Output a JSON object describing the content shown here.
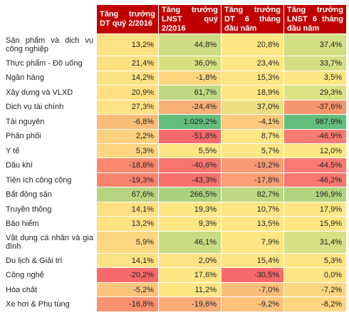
{
  "chart_data": {
    "type": "heatmap",
    "columns": [
      "Tăng trưởng DT quý 2/2016",
      "Tăng trưởng LNST quý 2/2016",
      "Tăng trưởng DT 6 tháng đầu năm",
      "Tăng trưởng LNST 6 tháng đầu năm"
    ],
    "rows": [
      {
        "sector": "Sản phẩm và dịch vụ công nghiệp",
        "values": [
          "13,2%",
          "44,8%",
          "20,8%",
          "37,4%"
        ]
      },
      {
        "sector": "Thực phẩm - Đồ uống",
        "values": [
          "21,4%",
          "36,0%",
          "23,4%",
          "33,7%"
        ]
      },
      {
        "sector": "Ngân hàng",
        "values": [
          "14,2%",
          "-1,8%",
          "15,3%",
          "3,5%"
        ]
      },
      {
        "sector": "Xây dựng và VLXD",
        "values": [
          "20,9%",
          "61,7%",
          "18,9%",
          "29,3%"
        ]
      },
      {
        "sector": "Dịch vụ tài chính",
        "values": [
          "27,3%",
          "-24,4%",
          "37,0%",
          "-37,6%"
        ]
      },
      {
        "sector": "Tài nguyên",
        "values": [
          "-6,8%",
          "1.029,2%",
          "-4,1%",
          "987,9%"
        ]
      },
      {
        "sector": "Phân phối",
        "values": [
          "2,2%",
          "-51,8%",
          "8,7%",
          "-46,9%"
        ]
      },
      {
        "sector": "Y tế",
        "values": [
          "5,3%",
          "5,5%",
          "5,7%",
          "12,0%"
        ]
      },
      {
        "sector": "Dầu khí",
        "values": [
          "-18,8%",
          "-40,6%",
          "-19,2%",
          "-44,5%"
        ]
      },
      {
        "sector": "Tiện ích công cộng",
        "values": [
          "-19,3%",
          "-43,3%",
          "-17,8%",
          "-46,2%"
        ]
      },
      {
        "sector": "Bất động sản",
        "values": [
          "67,6%",
          "266,5%",
          "82,7%",
          "196,9%"
        ]
      },
      {
        "sector": "Truyền thông",
        "values": [
          "14,1%",
          "19,3%",
          "10,7%",
          "17,9%"
        ]
      },
      {
        "sector": "Bảo hiểm",
        "values": [
          "13,2%",
          "9,3%",
          "13,5%",
          "15,9%"
        ]
      },
      {
        "sector": "Vật dụng cá nhân và gia đình",
        "values": [
          "5,9%",
          "46,1%",
          "7,9%",
          "31,4%"
        ]
      },
      {
        "sector": "Du lịch & Giải trí",
        "values": [
          "14,1%",
          "2,0%",
          "15,4%",
          "5,3%"
        ]
      },
      {
        "sector": "Công nghệ",
        "values": [
          "-20,2%",
          "17,6%",
          "-30,5%",
          "0,0%"
        ]
      },
      {
        "sector": "Hóa chất",
        "values": [
          "-5,2%",
          "11,2%",
          "-7,0%",
          "-7,2%"
        ]
      },
      {
        "sector": "Xe hơi & Phụ tùng",
        "values": [
          "-16,8%",
          "-19,6%",
          "-9,2%",
          "-8,2%"
        ]
      }
    ],
    "cell_colors": [
      [
        "#fde283",
        "#cbdc81",
        "#fee683",
        "#d2de82"
      ],
      [
        "#fee081",
        "#d9e082",
        "#fee683",
        "#d4df82"
      ],
      [
        "#fde283",
        "#fdd67f",
        "#fee583",
        "#fee683"
      ],
      [
        "#fee081",
        "#bfd881",
        "#fee683",
        "#dde283"
      ],
      [
        "#fee182",
        "#f9b176",
        "#ecdf82",
        "#f6966e"
      ],
      [
        "#fcbc79",
        "#63be7b",
        "#fcc87c",
        "#63be7b"
      ],
      [
        "#fdd07f",
        "#f8696b",
        "#fde583",
        "#f87c71"
      ],
      [
        "#fdd67f",
        "#fee483",
        "#fee683",
        "#fee683"
      ],
      [
        "#f9886f",
        "#f8756d",
        "#fa9a73",
        "#f87a70"
      ],
      [
        "#f8836f",
        "#f8706c",
        "#fa9f74",
        "#f8786f"
      ],
      [
        "#b6d47f",
        "#a9d17e",
        "#bcd880",
        "#b3d47f"
      ],
      [
        "#fee082",
        "#fee683",
        "#fee483",
        "#fee683"
      ],
      [
        "#fde283",
        "#fee683",
        "#fee583",
        "#fee683"
      ],
      [
        "#fdd881",
        "#c9dc81",
        "#fee683",
        "#d7e082"
      ],
      [
        "#fde283",
        "#fee283",
        "#fee583",
        "#fee483"
      ],
      [
        "#f8696b",
        "#fee683",
        "#f8696b",
        "#fee483"
      ],
      [
        "#fcc37b",
        "#fee683",
        "#fcbf7a",
        "#fdd881"
      ],
      [
        "#f9906f",
        "#fbad77",
        "#fcc27b",
        "#fdd47f"
      ]
    ],
    "header_color": "#c00000"
  }
}
